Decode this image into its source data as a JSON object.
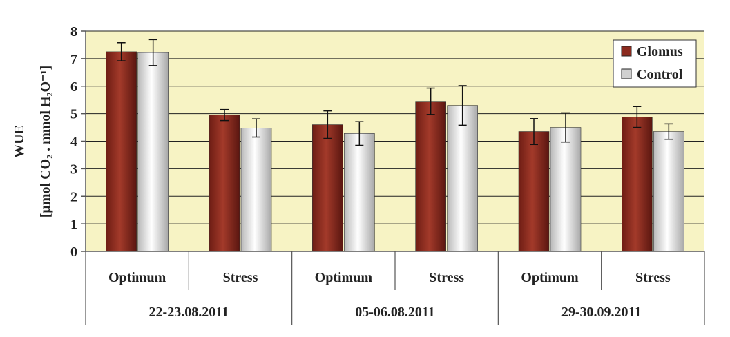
{
  "chart_data": {
    "type": "bar",
    "title": "",
    "ylabel_line1": "WUE",
    "ylabel_line2": "[µmol CO₂ . mmol H₂O⁻¹]",
    "ylim": [
      0,
      8
    ],
    "yticks": [
      "0",
      "1",
      "2",
      "3",
      "4",
      "5",
      "6",
      "7",
      "8"
    ],
    "grid": true,
    "legend_position": "top-right",
    "categories": [
      "Optimum",
      "Stress",
      "Optimum",
      "Stress",
      "Optimum",
      "Stress"
    ],
    "groups": [
      "22-23.08.2011",
      "05-06.08.2011",
      "29-30.09.2011"
    ],
    "series": [
      {
        "name": "Glomus",
        "color": "#8b2a1e",
        "values": [
          7.25,
          4.95,
          4.6,
          5.45,
          4.35,
          4.88
        ],
        "errors": [
          0.33,
          0.2,
          0.5,
          0.48,
          0.47,
          0.38
        ]
      },
      {
        "name": "Control",
        "color": "#d0d0d0",
        "values": [
          7.22,
          4.48,
          4.28,
          5.3,
          4.5,
          4.35
        ],
        "errors": [
          0.47,
          0.33,
          0.43,
          0.72,
          0.53,
          0.28
        ]
      }
    ],
    "colors": {
      "plot_background": "#f7f3c4",
      "glomus": "#8b2a1e",
      "control": "#d0d0d0"
    }
  }
}
